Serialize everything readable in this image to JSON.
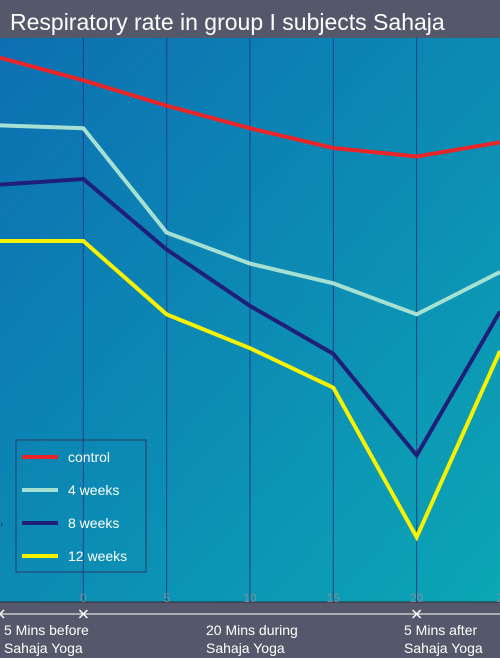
{
  "chart_data": {
    "type": "line",
    "title": "Respiratory rate  in group I subjects Sahaja",
    "xlabel": "",
    "ylabel": "",
    "x": [
      -5,
      0,
      5,
      10,
      15,
      20,
      25
    ],
    "xlim": [
      -5,
      25
    ],
    "x_tick_labels": [
      "0",
      "5",
      "10",
      "15",
      "20",
      "2"
    ],
    "grid": true,
    "legend_position": "bottom-left",
    "x_phase_labels": [
      {
        "line1": "5 Mins before",
        "line2": "Sahaja Yoga"
      },
      {
        "line1": "20 Mins during",
        "line2": "Sahaja Yoga"
      },
      {
        "line1": "5 Mins after",
        "line2": "Sahaja Yoga"
      }
    ],
    "ylim": [
      0,
      20
    ],
    "series": [
      {
        "name": "control",
        "color": "#e8262a",
        "values": [
          19.3,
          18.5,
          17.6,
          16.8,
          16.1,
          15.8,
          16.3
        ]
      },
      {
        "name": "4 weeks",
        "color": "#a6e0d2",
        "values": [
          16.9,
          16.8,
          13.1,
          12.0,
          11.3,
          10.2,
          11.7
        ]
      },
      {
        "name": "8 weeks",
        "color": "#1f1e78",
        "values": [
          14.8,
          15.0,
          12.5,
          10.5,
          8.8,
          5.2,
          10.3
        ]
      },
      {
        "name": "12 weeks",
        "color": "#f7f300",
        "values": [
          12.8,
          12.8,
          10.2,
          9.0,
          7.6,
          2.3,
          8.9
        ]
      }
    ]
  }
}
